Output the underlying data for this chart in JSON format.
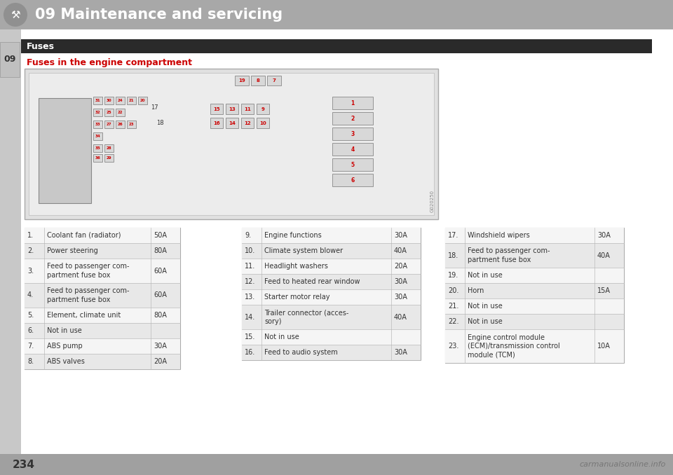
{
  "page_bg": "#d0d0d0",
  "content_bg": "#ffffff",
  "header_bg": "#a8a8a8",
  "header_text": "09 Maintenance and servicing",
  "header_text_color": "#ffffff",
  "tab_bg": "#2a2a2a",
  "tab_text": "Fuses",
  "tab_text_color": "#ffffff",
  "section_title": "Fuses in the engine compartment",
  "section_title_color": "#cc0000",
  "page_number": "234",
  "watermark": "carmanualsonline.info",
  "left_tab_label": "09",
  "table1": [
    [
      "1.",
      "Coolant fan (radiator)",
      "50A"
    ],
    [
      "2.",
      "Power steering",
      "80A"
    ],
    [
      "3.",
      "Feed to passenger com-\npartment fuse box",
      "60A"
    ],
    [
      "4.",
      "Feed to passenger com-\npartment fuse box",
      "60A"
    ],
    [
      "5.",
      "Element, climate unit",
      "80A"
    ],
    [
      "6.",
      "Not in use",
      ""
    ],
    [
      "7.",
      "ABS pump",
      "30A"
    ],
    [
      "8.",
      "ABS valves",
      "20A"
    ]
  ],
  "table2": [
    [
      "9.",
      "Engine functions",
      "30A"
    ],
    [
      "10.",
      "Climate system blower",
      "40A"
    ],
    [
      "11.",
      "Headlight washers",
      "20A"
    ],
    [
      "12.",
      "Feed to heated rear window",
      "30A"
    ],
    [
      "13.",
      "Starter motor relay",
      "30A"
    ],
    [
      "14.",
      "Trailer connector (acces-\nsory)",
      "40A"
    ],
    [
      "15.",
      "Not in use",
      ""
    ],
    [
      "16.",
      "Feed to audio system",
      "30A"
    ]
  ],
  "table3": [
    [
      "17.",
      "Windshield wipers",
      "30A"
    ],
    [
      "18.",
      "Feed to passenger com-\npartment fuse box",
      "40A"
    ],
    [
      "19.",
      "Not in use",
      ""
    ],
    [
      "20.",
      "Horn",
      "15A"
    ],
    [
      "21.",
      "Not in use",
      ""
    ],
    [
      "22.",
      "Not in use",
      ""
    ],
    [
      "23.",
      "Engine control module\n(ECM)/transmission control\nmodule (TCM)",
      "10A"
    ]
  ],
  "table_bg_odd": "#e8e8e8",
  "table_bg_even": "#f5f5f5",
  "table_border": "#cccccc",
  "table_text_color": "#333333"
}
